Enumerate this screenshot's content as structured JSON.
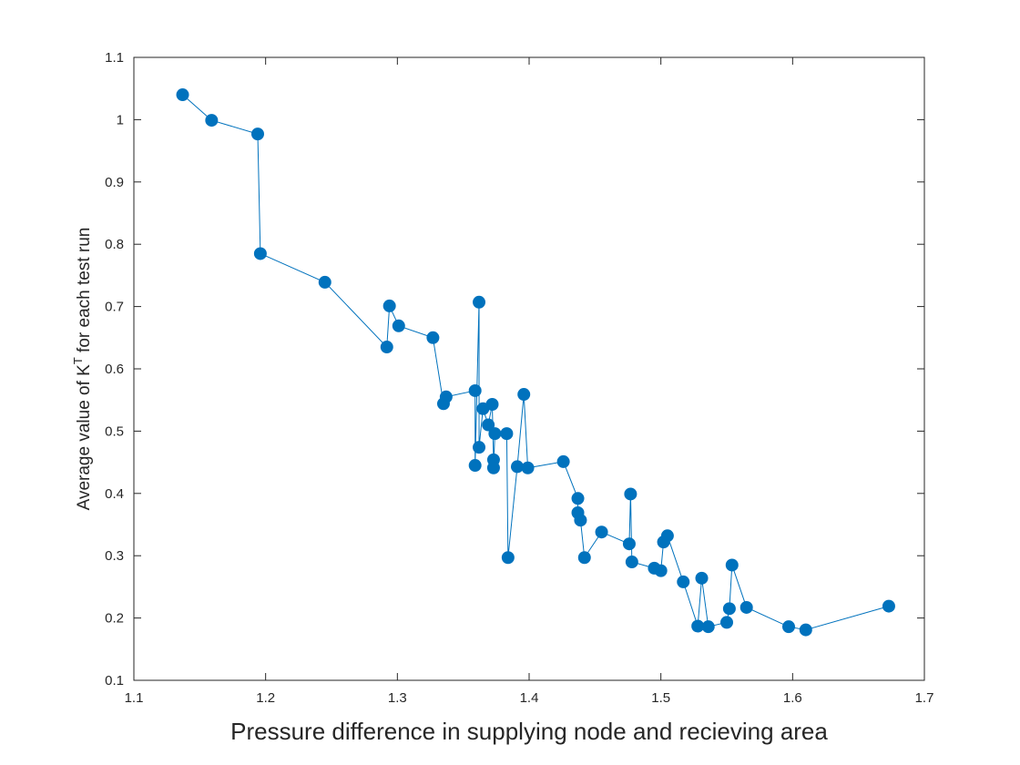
{
  "chart_data": {
    "type": "line",
    "title": "",
    "xlabel": "Pressure difference in supplying node and recieving area",
    "ylabel": {
      "prefix": "Average value of K",
      "superscript": "T",
      "suffix": " for each test run"
    },
    "xlim": [
      1.1,
      1.7
    ],
    "ylim": [
      0.1,
      1.1
    ],
    "xticks": [
      "1.1",
      "1.2",
      "1.3",
      "1.4",
      "1.5",
      "1.6",
      "1.7"
    ],
    "yticks": [
      "0.1",
      "0.2",
      "0.3",
      "0.4",
      "0.5",
      "0.6",
      "0.7",
      "0.8",
      "0.9",
      "1",
      "1.1"
    ],
    "grid": false,
    "legend": "none",
    "series": [
      {
        "color": "#0072BD",
        "marker": "filled-circle",
        "points": [
          [
            1.137,
            1.04
          ],
          [
            1.159,
            0.999
          ],
          [
            1.194,
            0.977
          ],
          [
            1.196,
            0.785
          ],
          [
            1.245,
            0.739
          ],
          [
            1.292,
            0.635
          ],
          [
            1.294,
            0.701
          ],
          [
            1.301,
            0.669
          ],
          [
            1.327,
            0.65
          ],
          [
            1.335,
            0.544
          ],
          [
            1.337,
            0.555
          ],
          [
            1.359,
            0.565
          ],
          [
            1.359,
            0.445
          ],
          [
            1.362,
            0.707
          ],
          [
            1.362,
            0.474
          ],
          [
            1.365,
            0.536
          ],
          [
            1.369,
            0.51
          ],
          [
            1.372,
            0.543
          ],
          [
            1.373,
            0.454
          ],
          [
            1.373,
            0.441
          ],
          [
            1.374,
            0.496
          ],
          [
            1.383,
            0.496
          ],
          [
            1.384,
            0.297
          ],
          [
            1.391,
            0.443
          ],
          [
            1.396,
            0.559
          ],
          [
            1.399,
            0.441
          ],
          [
            1.426,
            0.451
          ],
          [
            1.437,
            0.392
          ],
          [
            1.437,
            0.369
          ],
          [
            1.439,
            0.357
          ],
          [
            1.442,
            0.297
          ],
          [
            1.455,
            0.338
          ],
          [
            1.476,
            0.319
          ],
          [
            1.477,
            0.399
          ],
          [
            1.478,
            0.29
          ],
          [
            1.495,
            0.28
          ],
          [
            1.5,
            0.276
          ],
          [
            1.502,
            0.322
          ],
          [
            1.505,
            0.332
          ],
          [
            1.517,
            0.258
          ],
          [
            1.528,
            0.187
          ],
          [
            1.531,
            0.264
          ],
          [
            1.536,
            0.186
          ],
          [
            1.55,
            0.193
          ],
          [
            1.552,
            0.215
          ],
          [
            1.554,
            0.285
          ],
          [
            1.565,
            0.217
          ],
          [
            1.597,
            0.186
          ],
          [
            1.61,
            0.181
          ],
          [
            1.673,
            0.219
          ]
        ]
      }
    ]
  }
}
